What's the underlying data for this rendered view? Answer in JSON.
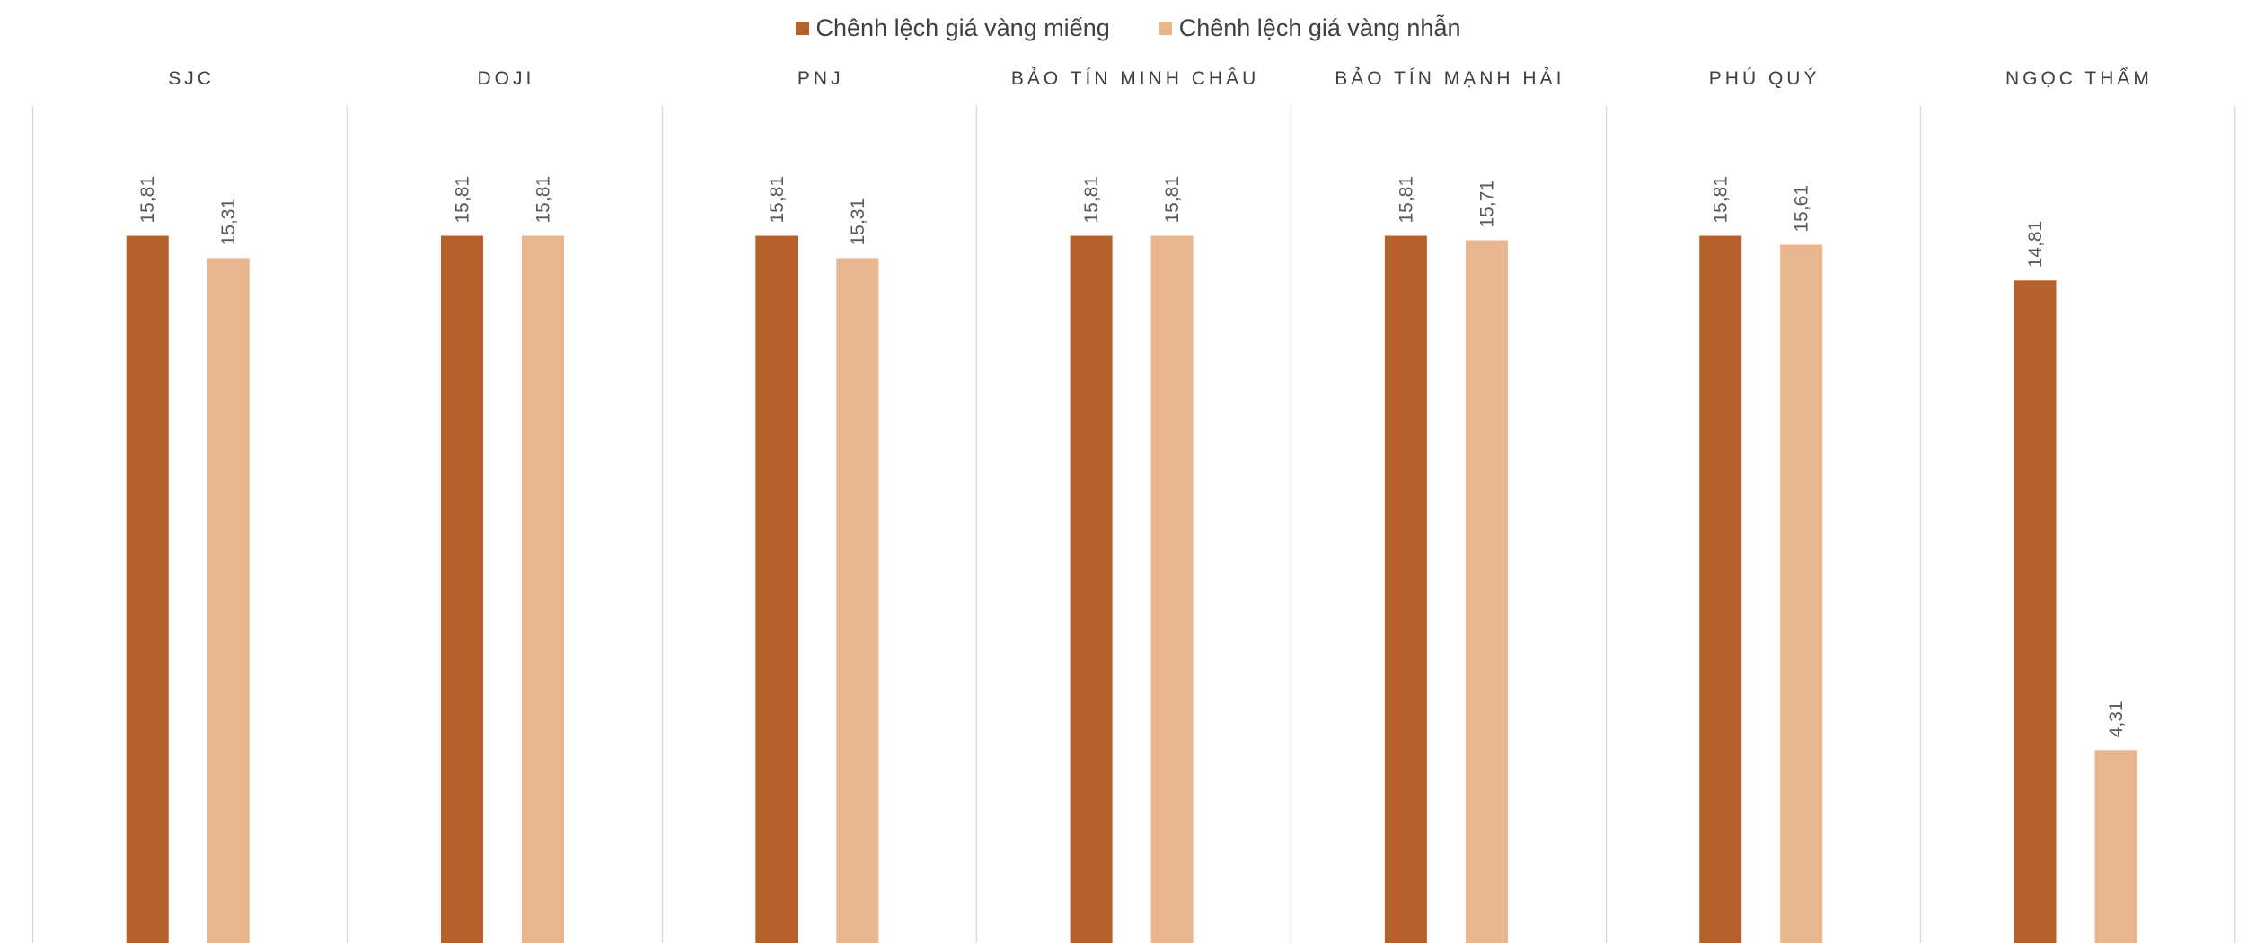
{
  "chart_data": {
    "type": "bar",
    "title": "",
    "xlabel": "",
    "ylabel": "",
    "categories": [
      "SJC",
      "DOJI",
      "PNJ",
      "BẢO TÍN MINH CHÂU",
      "BẢO TÍN MẠNH HẢI",
      "PHÚ QUÝ",
      "NGỌC THẨM"
    ],
    "series": [
      {
        "name": "Chênh lệch giá vàng miếng",
        "color": "#B5602A",
        "values": [
          15.81,
          15.81,
          15.81,
          15.81,
          15.81,
          15.81,
          14.81
        ],
        "labels": [
          "15,81",
          "15,81",
          "15,81",
          "15,81",
          "15,81",
          "15,81",
          "14,81"
        ]
      },
      {
        "name": "Chênh lệch giá vàng nhẫn",
        "color": "#E9B58C",
        "values": [
          15.31,
          15.81,
          15.31,
          15.81,
          15.71,
          15.61,
          4.31
        ],
        "labels": [
          "15,31",
          "15,81",
          "15,31",
          "15,81",
          "15,71",
          "15,61",
          "4,31"
        ]
      }
    ],
    "legend_position": "top-center",
    "grid": false,
    "category_separators": true,
    "ylim": [
      0,
      18.5
    ]
  }
}
